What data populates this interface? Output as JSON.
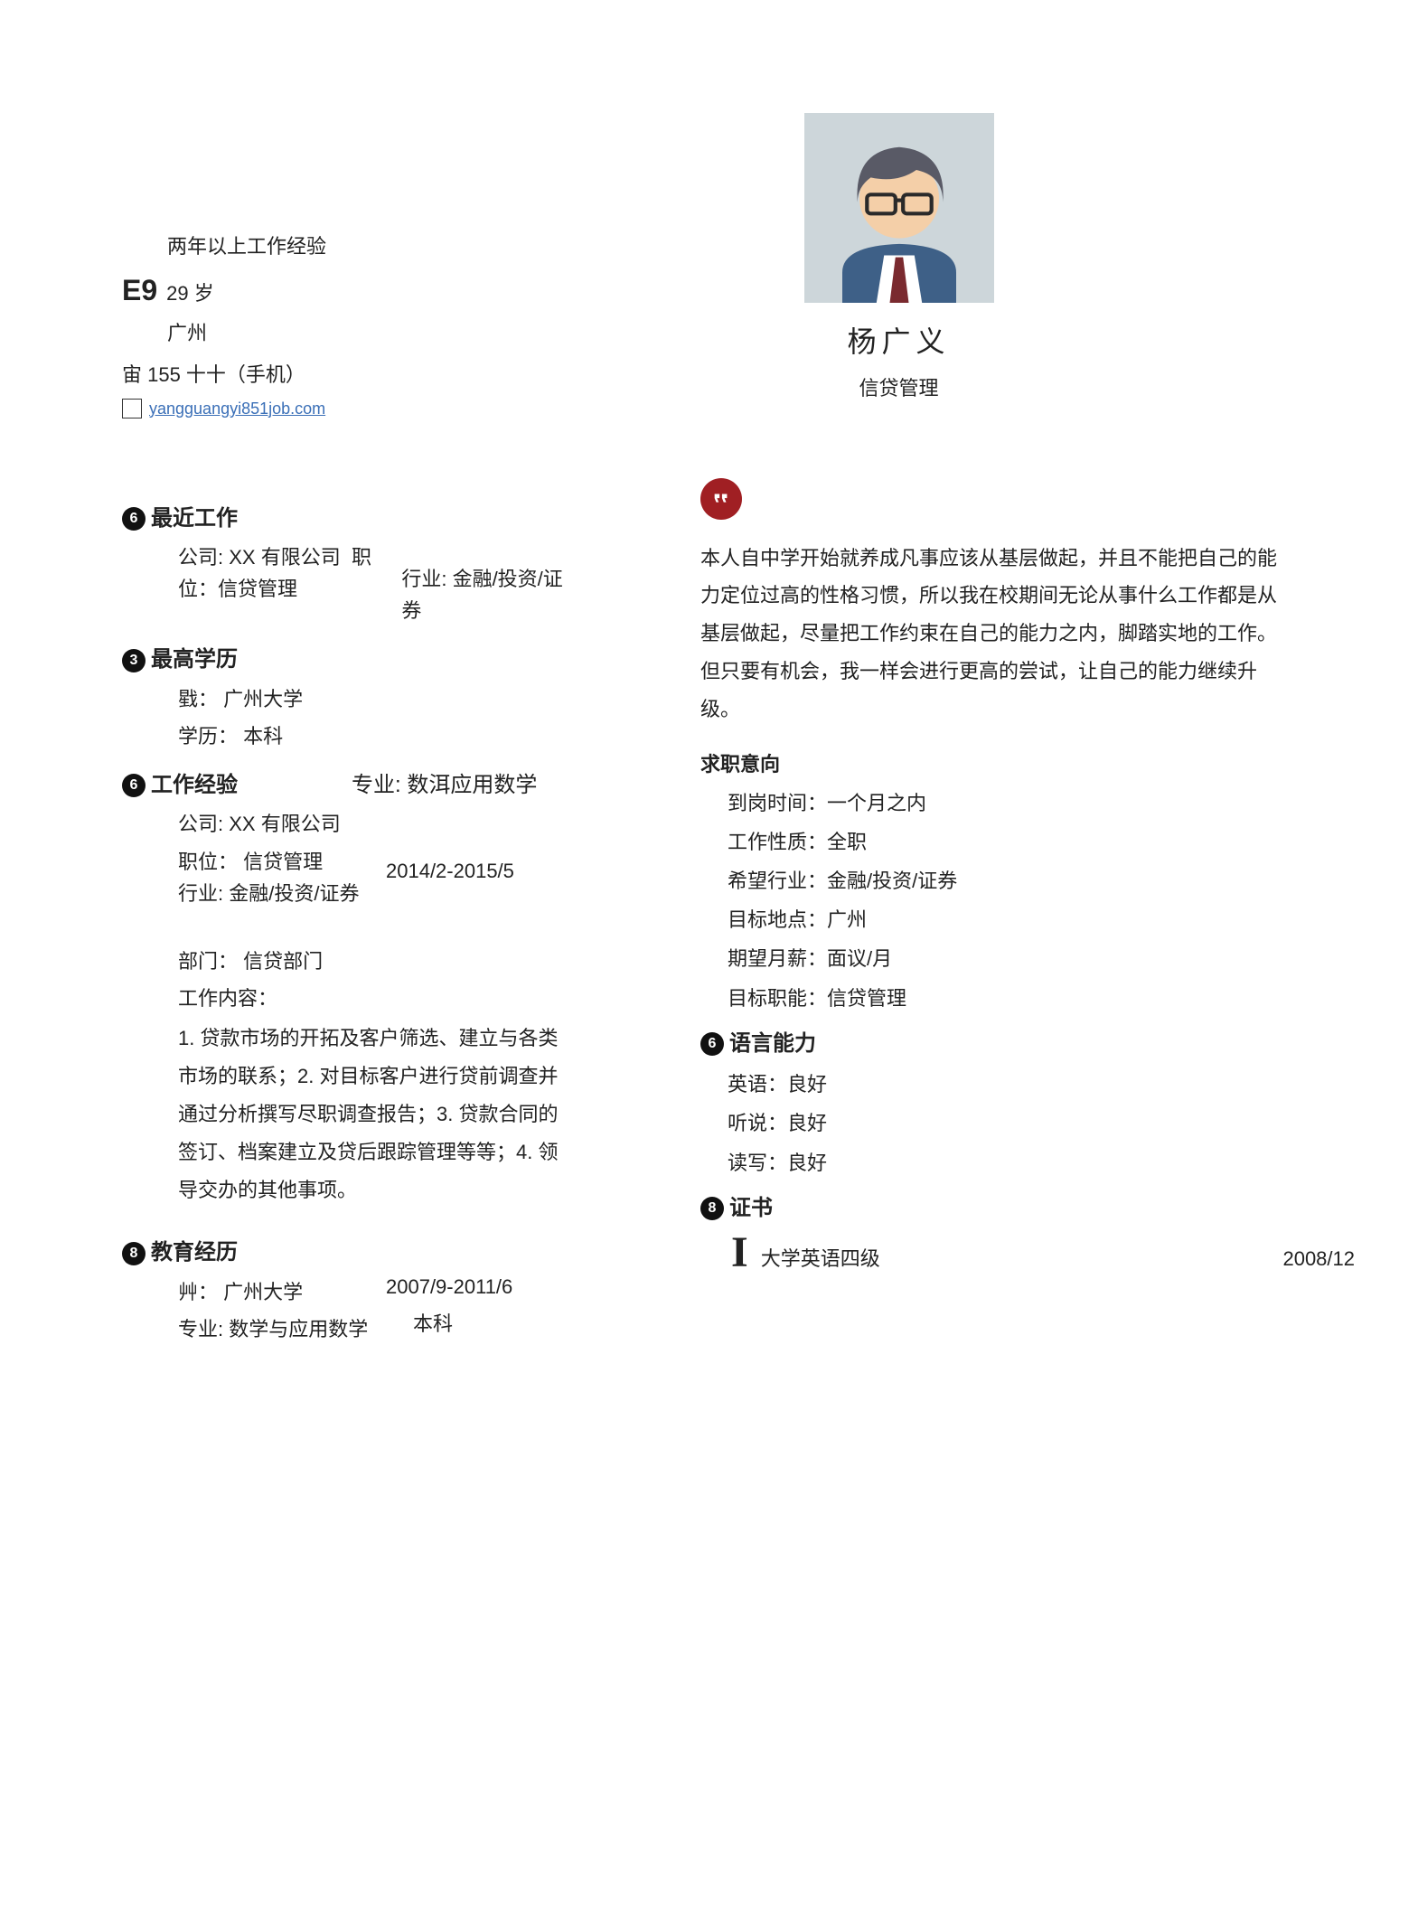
{
  "header": {
    "experience": "两年以上工作经验",
    "e9": "E9",
    "age": "29 岁",
    "city": "广州",
    "phone_prefix": "宙 155 十十（手机）",
    "email": "yangguangyi851job.com"
  },
  "profile": {
    "name": "杨广义",
    "title": "信贷管理"
  },
  "avatar": {
    "bg": "#cdd6da",
    "hair": "#595a66",
    "skin": "#f4cfa8",
    "suit": "#3e6087",
    "shirt": "#ffffff",
    "tie": "#7a2a2f",
    "glasses": "#2a2a2a"
  },
  "left": {
    "recent": {
      "badge": "6",
      "title": "最近工作",
      "company_label": "公司:",
      "company": "XX 有限公司",
      "position_label": "职",
      "position_line2": "位：信贷管理",
      "industry_label": "行业:",
      "industry": "金融/投资/证券"
    },
    "edu_top": {
      "badge": "3",
      "title": "最高学历",
      "school_label": "戥：",
      "school": "广州大学",
      "degree_label": "学历：",
      "degree": "本科"
    },
    "work": {
      "badge": "6",
      "title": "工作经验",
      "major_label": "专业:",
      "major": "数洱应用数学",
      "company_label": "公司:",
      "company": "XX 有限公司",
      "position_label": "职位：",
      "position": "信贷管理",
      "industry_label": "行业:",
      "industry": "金融/投资/证券",
      "date": "2014/2-2015/5",
      "dept_label": "部门：",
      "dept": "信贷部门",
      "content_label": "工作内容：",
      "content": "1. 贷款市场的开拓及客户筛选、建立与各类市场的联系；2. 对目标客户进行贷前调查并通过分析撰写尽职调查报告；3. 贷款合同的签订、档案建立及贷后跟踪管理等等；4. 领导交办的其他事项。"
    },
    "edu": {
      "badge": "8",
      "title": "教育经历",
      "school_label": "艸：",
      "school": "广州大学",
      "date": "2007/9-2011/6",
      "major_label": "专业:",
      "major": "数学与应用数学",
      "degree": "本科"
    }
  },
  "right": {
    "bio": "本人自中学开始就养成凡事应该从基层做起，并且不能把自己的能力定位过高的性格习惯，所以我在校期间无论从事什么工作都是从基层做起，尽量把工作约束在自己的能力之内，脚踏实地的工作。但只要有机会，我一样会进行更高的尝试，让自己的能力继续升级。",
    "intention": {
      "title": "求职意向",
      "items": [
        "到岗时间：一个月之内",
        "工作性质：全职",
        "希望行业：金融/投资/证券",
        "目标地点：广州",
        "期望月薪：面议/月",
        "目标职能：信贷管理"
      ]
    },
    "lang": {
      "badge": "6",
      "title": "语言能力",
      "items": [
        "英语：良好",
        "听说：良好",
        "读写：良好"
      ]
    },
    "cert": {
      "badge": "8",
      "title": "证书",
      "name": "大学英语四级",
      "date": "2008/12"
    }
  }
}
